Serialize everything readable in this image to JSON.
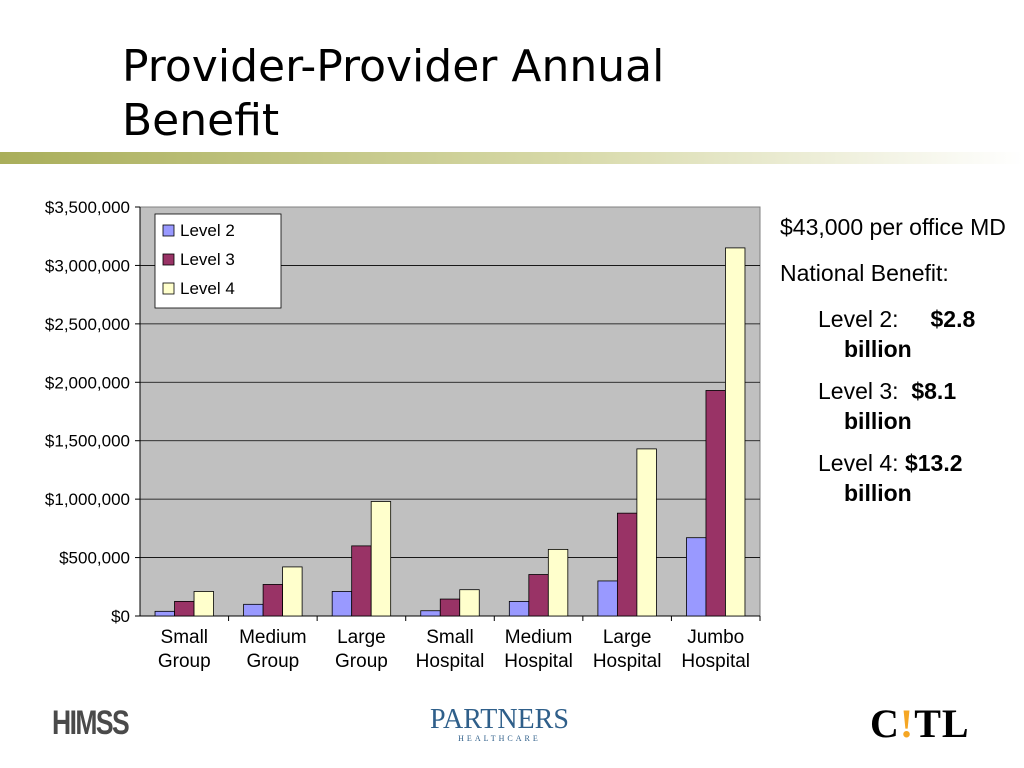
{
  "slide": {
    "title_line1": "Provider-Provider Annual",
    "title_line2": "Benefit"
  },
  "chart_data": {
    "type": "bar",
    "title": "",
    "xlabel": "",
    "ylabel": "",
    "ylim": [
      0,
      3500000
    ],
    "yticks": [
      0,
      500000,
      1000000,
      1500000,
      2000000,
      2500000,
      3000000,
      3500000
    ],
    "ytick_labels": [
      "$0",
      "$500,000",
      "$1,000,000",
      "$1,500,000",
      "$2,000,000",
      "$2,500,000",
      "$3,000,000",
      "$3,500,000"
    ],
    "categories": [
      [
        "Small",
        "Group"
      ],
      [
        "Medium",
        "Group"
      ],
      [
        "Large",
        "Group"
      ],
      [
        "Small",
        "Hospital"
      ],
      [
        "Medium",
        "Hospital"
      ],
      [
        "Large",
        "Hospital"
      ],
      [
        "Jumbo",
        "Hospital"
      ]
    ],
    "series": [
      {
        "name": "Level 2",
        "color": "#9999ff",
        "values": [
          40000,
          100000,
          210000,
          45000,
          125000,
          300000,
          670000
        ]
      },
      {
        "name": "Level 3",
        "color": "#993366",
        "values": [
          125000,
          270000,
          600000,
          145000,
          355000,
          880000,
          1930000
        ]
      },
      {
        "name": "Level 4",
        "color": "#ffffcc",
        "values": [
          210000,
          420000,
          980000,
          225000,
          570000,
          1430000,
          3150000
        ]
      }
    ],
    "legend_position": "top-left",
    "grid": true,
    "plot_background": "#c0c0c0"
  },
  "notes": {
    "per_md": "$43,000 per office MD",
    "national_label": "National Benefit:",
    "levels": [
      {
        "label": "Level 2:",
        "value": "$2.8 billion"
      },
      {
        "label": "Level 3:",
        "value": "$8.1 billion"
      },
      {
        "label": "Level 4:",
        "value": "$13.2 billion"
      }
    ]
  },
  "logos": {
    "left": "HIMSS",
    "center_main": "PARTNERS",
    "center_sub": "HEALTHCARE",
    "right": "C!TL"
  },
  "colors": {
    "rule_dark": "#b3b86a",
    "accent_orange": "#f5a623"
  }
}
